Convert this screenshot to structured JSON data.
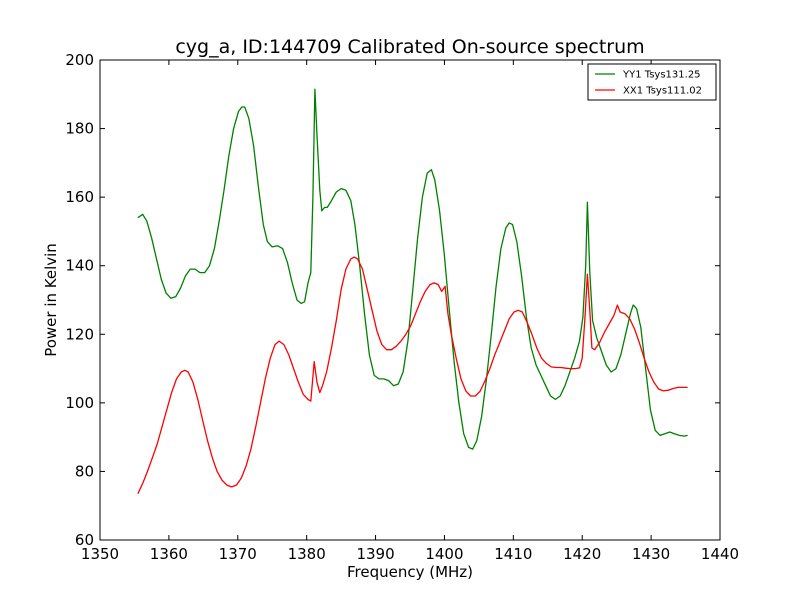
{
  "chart_data": {
    "type": "line",
    "title": "cyg_a, ID:144709 Calibrated On-source spectrum",
    "xlabel": "Frequency (MHz)",
    "ylabel": "Power in Kelvin",
    "xlim": [
      1350,
      1440
    ],
    "ylim": [
      60,
      200
    ],
    "xticks": [
      1350,
      1360,
      1370,
      1380,
      1390,
      1400,
      1410,
      1420,
      1430,
      1440
    ],
    "yticks": [
      60,
      80,
      100,
      120,
      140,
      160,
      180,
      200
    ],
    "grid": false,
    "legend_position": "top-right",
    "series": [
      {
        "name": "YY1 Tsys131.25",
        "color": "#008000",
        "points": [
          [
            1355.5,
            154
          ],
          [
            1356.2,
            155
          ],
          [
            1356.8,
            153
          ],
          [
            1357.5,
            148
          ],
          [
            1358.2,
            142
          ],
          [
            1358.9,
            136
          ],
          [
            1359.6,
            132
          ],
          [
            1360.3,
            130.5
          ],
          [
            1361,
            131
          ],
          [
            1361.7,
            133.5
          ],
          [
            1362.4,
            137
          ],
          [
            1363.1,
            139
          ],
          [
            1363.8,
            139
          ],
          [
            1364.5,
            138
          ],
          [
            1365.2,
            138
          ],
          [
            1365.9,
            140
          ],
          [
            1366.6,
            145
          ],
          [
            1367.3,
            153
          ],
          [
            1368,
            162
          ],
          [
            1368.7,
            172
          ],
          [
            1369.4,
            180
          ],
          [
            1370.1,
            185
          ],
          [
            1370.6,
            186.3
          ],
          [
            1371,
            186.3
          ],
          [
            1371.6,
            183
          ],
          [
            1372.3,
            175
          ],
          [
            1373,
            163
          ],
          [
            1373.7,
            152
          ],
          [
            1374.3,
            147
          ],
          [
            1375,
            145.5
          ],
          [
            1375.8,
            145.8
          ],
          [
            1376.5,
            145
          ],
          [
            1377.2,
            141
          ],
          [
            1377.9,
            135
          ],
          [
            1378.6,
            130
          ],
          [
            1379.2,
            129
          ],
          [
            1379.7,
            129.5
          ],
          [
            1380.2,
            135
          ],
          [
            1380.6,
            138
          ],
          [
            1380.9,
            160
          ],
          [
            1381.2,
            191.5
          ],
          [
            1381.5,
            178
          ],
          [
            1381.9,
            162
          ],
          [
            1382.2,
            156
          ],
          [
            1382.6,
            157
          ],
          [
            1383,
            157
          ],
          [
            1383.6,
            159
          ],
          [
            1384.3,
            161.5
          ],
          [
            1385,
            162.5
          ],
          [
            1385.7,
            162
          ],
          [
            1386.4,
            159
          ],
          [
            1387,
            152
          ],
          [
            1387.7,
            140
          ],
          [
            1388.4,
            126
          ],
          [
            1389.1,
            114
          ],
          [
            1389.8,
            108
          ],
          [
            1390.5,
            107
          ],
          [
            1391.2,
            107
          ],
          [
            1391.9,
            106.5
          ],
          [
            1392.6,
            105
          ],
          [
            1393.3,
            105.5
          ],
          [
            1394,
            109
          ],
          [
            1394.7,
            118
          ],
          [
            1395.4,
            133
          ],
          [
            1396.1,
            148
          ],
          [
            1396.8,
            160
          ],
          [
            1397.5,
            167
          ],
          [
            1398.1,
            168
          ],
          [
            1398.6,
            165
          ],
          [
            1399.3,
            156
          ],
          [
            1400,
            143
          ],
          [
            1400.7,
            127
          ],
          [
            1401.4,
            112
          ],
          [
            1402.1,
            100
          ],
          [
            1402.8,
            91
          ],
          [
            1403.5,
            87
          ],
          [
            1404.1,
            86.5
          ],
          [
            1404.7,
            89
          ],
          [
            1405.4,
            96
          ],
          [
            1406.1,
            107
          ],
          [
            1406.8,
            120
          ],
          [
            1407.5,
            134
          ],
          [
            1408.2,
            145
          ],
          [
            1408.9,
            151
          ],
          [
            1409.4,
            152.5
          ],
          [
            1409.9,
            152
          ],
          [
            1410.5,
            147
          ],
          [
            1411.2,
            137
          ],
          [
            1411.9,
            125
          ],
          [
            1412.6,
            116
          ],
          [
            1413.3,
            111
          ],
          [
            1414,
            108
          ],
          [
            1414.7,
            105
          ],
          [
            1415.4,
            102
          ],
          [
            1416.1,
            101
          ],
          [
            1416.8,
            102
          ],
          [
            1417.5,
            105
          ],
          [
            1418.2,
            109
          ],
          [
            1418.9,
            113
          ],
          [
            1419.6,
            118
          ],
          [
            1420.1,
            125
          ],
          [
            1420.5,
            140
          ],
          [
            1420.75,
            158.5
          ],
          [
            1421.1,
            138
          ],
          [
            1421.5,
            124
          ],
          [
            1422.1,
            119
          ],
          [
            1422.8,
            115
          ],
          [
            1423.5,
            111
          ],
          [
            1424.2,
            109
          ],
          [
            1424.9,
            110
          ],
          [
            1425.6,
            114
          ],
          [
            1426.3,
            120
          ],
          [
            1427,
            126
          ],
          [
            1427.4,
            128.5
          ],
          [
            1427.9,
            127.5
          ],
          [
            1428.5,
            122
          ],
          [
            1429.2,
            110
          ],
          [
            1429.9,
            98
          ],
          [
            1430.6,
            92
          ],
          [
            1431.3,
            90.5
          ],
          [
            1432,
            91
          ],
          [
            1432.7,
            91.5
          ],
          [
            1433.4,
            91
          ],
          [
            1434.1,
            90.5
          ],
          [
            1434.8,
            90.3
          ],
          [
            1435.3,
            90.5
          ]
        ]
      },
      {
        "name": "XX1 Tsys111.02",
        "color": "#ff0000",
        "points": [
          [
            1355.5,
            73.5
          ],
          [
            1356.2,
            76.5
          ],
          [
            1356.9,
            80
          ],
          [
            1357.6,
            84
          ],
          [
            1358.3,
            88
          ],
          [
            1359,
            93
          ],
          [
            1359.7,
            98
          ],
          [
            1360.4,
            103
          ],
          [
            1361.1,
            107
          ],
          [
            1361.8,
            109
          ],
          [
            1362.3,
            109.5
          ],
          [
            1362.8,
            109
          ],
          [
            1363.5,
            106
          ],
          [
            1364.2,
            101
          ],
          [
            1364.9,
            95
          ],
          [
            1365.6,
            89
          ],
          [
            1366.3,
            84
          ],
          [
            1367,
            80
          ],
          [
            1367.7,
            77.5
          ],
          [
            1368.4,
            76
          ],
          [
            1369.1,
            75.5
          ],
          [
            1369.8,
            76
          ],
          [
            1370.5,
            78
          ],
          [
            1371.2,
            81.5
          ],
          [
            1371.9,
            86.5
          ],
          [
            1372.6,
            93
          ],
          [
            1373.3,
            100
          ],
          [
            1374,
            107
          ],
          [
            1374.7,
            113
          ],
          [
            1375.4,
            117
          ],
          [
            1376,
            118
          ],
          [
            1376.7,
            117
          ],
          [
            1377.4,
            114
          ],
          [
            1378.1,
            110
          ],
          [
            1378.8,
            106
          ],
          [
            1379.5,
            102.5
          ],
          [
            1380.2,
            101
          ],
          [
            1380.6,
            100.5
          ],
          [
            1381.1,
            112
          ],
          [
            1381.5,
            106
          ],
          [
            1381.9,
            103
          ],
          [
            1382.3,
            105
          ],
          [
            1382.9,
            109
          ],
          [
            1383.6,
            116
          ],
          [
            1384.3,
            124
          ],
          [
            1385,
            133
          ],
          [
            1385.7,
            139
          ],
          [
            1386.4,
            142
          ],
          [
            1386.9,
            142.5
          ],
          [
            1387.4,
            142
          ],
          [
            1388.1,
            139
          ],
          [
            1388.8,
            133
          ],
          [
            1389.5,
            127
          ],
          [
            1390.2,
            121
          ],
          [
            1390.9,
            117
          ],
          [
            1391.6,
            115.5
          ],
          [
            1392.3,
            115.5
          ],
          [
            1393,
            116.5
          ],
          [
            1393.7,
            118
          ],
          [
            1394.4,
            120
          ],
          [
            1395.1,
            122.5
          ],
          [
            1395.8,
            126
          ],
          [
            1396.5,
            129.5
          ],
          [
            1397.2,
            132.5
          ],
          [
            1397.9,
            134.5
          ],
          [
            1398.5,
            135
          ],
          [
            1399.1,
            134.5
          ],
          [
            1399.6,
            132.5
          ],
          [
            1400.1,
            134
          ],
          [
            1400.5,
            126
          ],
          [
            1401,
            120
          ],
          [
            1401.7,
            113
          ],
          [
            1402.4,
            107
          ],
          [
            1403.1,
            103.5
          ],
          [
            1403.8,
            102
          ],
          [
            1404.5,
            102
          ],
          [
            1405.2,
            103.5
          ],
          [
            1405.9,
            106.5
          ],
          [
            1406.6,
            110
          ],
          [
            1407.3,
            114
          ],
          [
            1408,
            117.5
          ],
          [
            1408.7,
            121
          ],
          [
            1409.4,
            124.5
          ],
          [
            1410.1,
            126.5
          ],
          [
            1410.7,
            127
          ],
          [
            1411.3,
            126.5
          ],
          [
            1412,
            123.5
          ],
          [
            1412.7,
            120
          ],
          [
            1413.4,
            116
          ],
          [
            1414.1,
            113
          ],
          [
            1414.8,
            111.5
          ],
          [
            1415.5,
            110.5
          ],
          [
            1416.2,
            110.3
          ],
          [
            1416.9,
            110.3
          ],
          [
            1417.6,
            110.1
          ],
          [
            1418.3,
            110
          ],
          [
            1419,
            110
          ],
          [
            1419.6,
            110.2
          ],
          [
            1420,
            113
          ],
          [
            1420.4,
            125
          ],
          [
            1420.75,
            137.5
          ],
          [
            1421.1,
            127
          ],
          [
            1421.4,
            116
          ],
          [
            1421.8,
            115.5
          ],
          [
            1422.5,
            117.5
          ],
          [
            1423.2,
            120.5
          ],
          [
            1423.9,
            123
          ],
          [
            1424.6,
            125.5
          ],
          [
            1425.1,
            128.5
          ],
          [
            1425.5,
            126.5
          ],
          [
            1426.2,
            126
          ],
          [
            1426.9,
            124.5
          ],
          [
            1427.6,
            121.5
          ],
          [
            1428.3,
            117.5
          ],
          [
            1429,
            113
          ],
          [
            1429.7,
            109
          ],
          [
            1430.4,
            106
          ],
          [
            1431.1,
            104
          ],
          [
            1431.8,
            103.5
          ],
          [
            1432.5,
            103.7
          ],
          [
            1433.2,
            104.2
          ],
          [
            1433.9,
            104.5
          ],
          [
            1434.6,
            104.5
          ],
          [
            1435.3,
            104.5
          ]
        ]
      }
    ]
  }
}
